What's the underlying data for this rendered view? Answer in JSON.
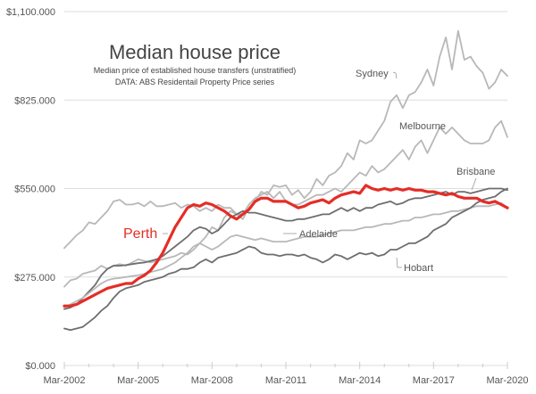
{
  "chart_data": {
    "type": "line",
    "title": "Median house price",
    "subtitle_lines": [
      "Median price of established house transfers (unstratified)",
      "DATA: ABS Residentail Property Price series"
    ],
    "xlabel": "",
    "ylabel": "",
    "x_start": "Mar-2002",
    "x_end": "Mar-2020",
    "x_frequency": "quarterly",
    "x_tick_labels": [
      "Mar-2002",
      "Mar-2005",
      "Mar-2008",
      "Mar-2011",
      "Mar-2014",
      "Mar-2017",
      "Mar-2020"
    ],
    "y_tick_labels": [
      "$0.000",
      "$275.000",
      "$550.000",
      "$825.000",
      "$1,100.000"
    ],
    "y_ticks": [
      0,
      275,
      550,
      825,
      1100
    ],
    "ylim": [
      0,
      1100
    ],
    "grid": "horizontal",
    "units": "$ thousands",
    "colors": {
      "highlight": "#e52d27",
      "light": "#b8b8b8",
      "dark": "#6e6e6e",
      "grid": "#dddddd",
      "text": "#555555"
    },
    "series": [
      {
        "name": "Sydney",
        "label": "Sydney",
        "style": "light",
        "values": [
          365,
          385,
          405,
          420,
          445,
          440,
          460,
          480,
          510,
          515,
          500,
          500,
          505,
          495,
          510,
          495,
          495,
          500,
          505,
          490,
          500,
          495,
          480,
          490,
          480,
          500,
          490,
          490,
          470,
          455,
          490,
          510,
          540,
          530,
          560,
          555,
          560,
          530,
          545,
          520,
          540,
          580,
          560,
          590,
          600,
          620,
          660,
          640,
          700,
          690,
          700,
          730,
          760,
          820,
          840,
          800,
          840,
          850,
          880,
          920,
          870,
          960,
          1020,
          920,
          1040,
          950,
          960,
          930,
          910,
          860,
          880,
          920,
          900
        ]
      },
      {
        "name": "Melbourne",
        "label": "Melbourne",
        "style": "light",
        "values": [
          245,
          265,
          270,
          285,
          290,
          295,
          310,
          300,
          310,
          315,
          310,
          320,
          330,
          325,
          320,
          325,
          330,
          335,
          340,
          350,
          345,
          360,
          380,
          400,
          430,
          420,
          460,
          480,
          470,
          470,
          500,
          520,
          530,
          540,
          520,
          540,
          510,
          500,
          500,
          510,
          520,
          530,
          530,
          540,
          550,
          540,
          560,
          580,
          600,
          590,
          620,
          600,
          610,
          630,
          650,
          670,
          640,
          680,
          700,
          660,
          700,
          740,
          720,
          740,
          720,
          700,
          690,
          690,
          690,
          700,
          740,
          760,
          710
        ]
      },
      {
        "name": "Brisbane",
        "label": "Brisbane",
        "style": "dark",
        "values": [
          175,
          180,
          190,
          210,
          230,
          250,
          280,
          300,
          310,
          310,
          312,
          315,
          318,
          320,
          325,
          330,
          340,
          355,
          370,
          385,
          400,
          420,
          430,
          425,
          410,
          420,
          440,
          460,
          470,
          480,
          475,
          475,
          470,
          465,
          460,
          455,
          450,
          450,
          455,
          455,
          460,
          465,
          470,
          470,
          480,
          490,
          480,
          490,
          480,
          490,
          490,
          500,
          505,
          510,
          500,
          505,
          515,
          520,
          520,
          525,
          530,
          535,
          540,
          530,
          540,
          540,
          535,
          540,
          545,
          550,
          550,
          550,
          545
        ]
      },
      {
        "name": "Adelaide",
        "label": "Adelaide",
        "style": "light",
        "values": [
          180,
          190,
          200,
          210,
          225,
          240,
          255,
          265,
          270,
          272,
          275,
          278,
          280,
          285,
          290,
          295,
          300,
          310,
          320,
          335,
          350,
          370,
          380,
          370,
          360,
          370,
          385,
          400,
          405,
          400,
          395,
          390,
          395,
          390,
          385,
          385,
          385,
          390,
          395,
          400,
          400,
          400,
          405,
          410,
          415,
          420,
          420,
          420,
          425,
          430,
          430,
          435,
          440,
          440,
          445,
          450,
          450,
          460,
          460,
          465,
          470,
          470,
          475,
          480,
          480,
          485,
          490,
          495,
          495,
          495,
          500,
          505,
          490
        ]
      },
      {
        "name": "Hobart",
        "label": "Hobart",
        "style": "dark",
        "values": [
          115,
          110,
          115,
          120,
          135,
          150,
          170,
          185,
          210,
          230,
          240,
          245,
          250,
          260,
          265,
          270,
          275,
          285,
          290,
          300,
          300,
          305,
          320,
          330,
          320,
          335,
          340,
          345,
          350,
          360,
          370,
          365,
          350,
          345,
          345,
          340,
          345,
          345,
          340,
          345,
          335,
          330,
          320,
          330,
          345,
          340,
          330,
          340,
          350,
          345,
          350,
          340,
          345,
          360,
          360,
          370,
          380,
          380,
          390,
          400,
          420,
          430,
          440,
          460,
          470,
          480,
          490,
          505,
          515,
          520,
          525,
          540,
          550
        ]
      },
      {
        "name": "Perth",
        "label": "Perth",
        "style": "highlight",
        "values": [
          185,
          185,
          190,
          200,
          210,
          220,
          230,
          240,
          245,
          250,
          255,
          255,
          270,
          280,
          295,
          320,
          350,
          390,
          430,
          460,
          490,
          500,
          495,
          505,
          500,
          490,
          480,
          465,
          455,
          470,
          485,
          510,
          520,
          520,
          510,
          510,
          510,
          500,
          490,
          495,
          505,
          510,
          515,
          505,
          520,
          530,
          535,
          540,
          535,
          560,
          550,
          545,
          550,
          545,
          550,
          545,
          550,
          545,
          545,
          540,
          540,
          535,
          530,
          535,
          525,
          520,
          520,
          520,
          510,
          505,
          510,
          500,
          490
        ]
      }
    ],
    "annotations": [
      {
        "text": "Sydney",
        "series": "Sydney"
      },
      {
        "text": "Melbourne",
        "series": "Melbourne"
      },
      {
        "text": "Brisbane",
        "series": "Brisbane"
      },
      {
        "text": "Adelaide",
        "series": "Adelaide"
      },
      {
        "text": "Hobart",
        "series": "Hobart"
      },
      {
        "text": "Perth",
        "series": "Perth"
      }
    ]
  }
}
